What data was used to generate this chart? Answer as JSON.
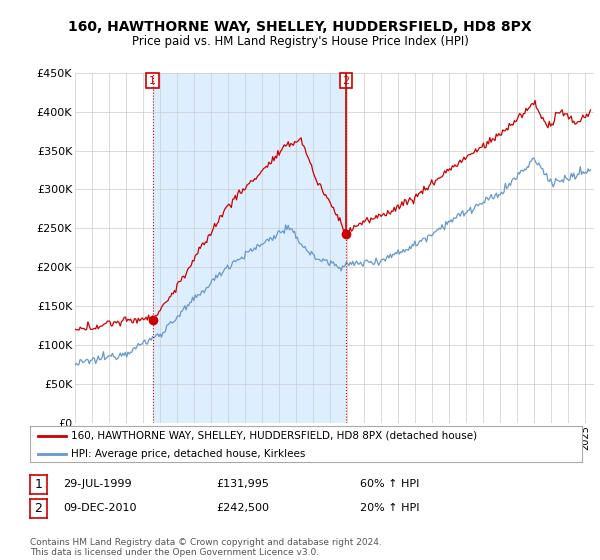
{
  "title": "160, HAWTHORNE WAY, SHELLEY, HUDDERSFIELD, HD8 8PX",
  "subtitle": "Price paid vs. HM Land Registry's House Price Index (HPI)",
  "legend_line1": "160, HAWTHORNE WAY, SHELLEY, HUDDERSFIELD, HD8 8PX (detached house)",
  "legend_line2": "HPI: Average price, detached house, Kirklees",
  "annotation1_date": "29-JUL-1999",
  "annotation1_price": 131995,
  "annotation1_price_str": "£131,995",
  "annotation1_pct": "60% ↑ HPI",
  "annotation2_date": "09-DEC-2010",
  "annotation2_price": 242500,
  "annotation2_price_str": "£242,500",
  "annotation2_pct": "20% ↑ HPI",
  "footer": "Contains HM Land Registry data © Crown copyright and database right 2024.\nThis data is licensed under the Open Government Licence v3.0.",
  "ylim": [
    0,
    450000
  ],
  "ytick_vals": [
    0,
    50000,
    100000,
    150000,
    200000,
    250000,
    300000,
    350000,
    400000,
    450000
  ],
  "ytick_labels": [
    "£0",
    "£50K",
    "£100K",
    "£150K",
    "£200K",
    "£250K",
    "£300K",
    "£350K",
    "£400K",
    "£450K"
  ],
  "xlim_start": 1995,
  "xlim_end": 2025.5,
  "purchase1_year": 1999.57,
  "purchase2_year": 2010.93,
  "red_color": "#cc0000",
  "blue_color": "#6699cc",
  "shade_color": "#ddeeff",
  "grid_color": "#cccccc",
  "bg_color": "#ffffff"
}
